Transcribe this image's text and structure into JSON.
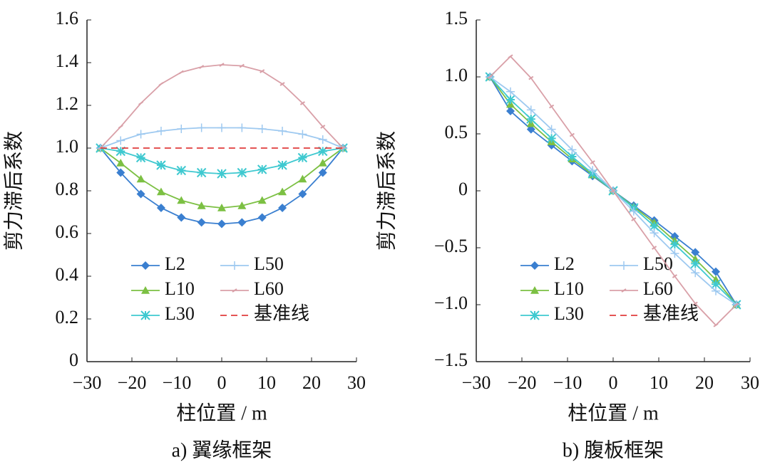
{
  "chart_data": [
    {
      "type": "line",
      "title": "a)  翼缘框架",
      "xlabel": "柱位置 / m",
      "ylabel": "剪力滞后系数",
      "x": [
        -27,
        -22.5,
        -18,
        -13.5,
        -9,
        -4.5,
        0,
        4.5,
        9,
        13.5,
        18,
        22.5,
        27
      ],
      "xlim": [
        -30,
        30
      ],
      "xticks": [
        {
          "value": -30,
          "label": "−30"
        },
        {
          "value": -20,
          "label": "−20"
        },
        {
          "value": -10,
          "label": "−10"
        },
        0,
        10,
        20,
        30
      ],
      "ylim": [
        0,
        1.6
      ],
      "yticks": [
        0,
        0.2,
        0.4,
        0.6,
        0.8,
        {
          "value": 1.0,
          "label": "1.0"
        },
        1.2,
        1.4,
        1.6
      ],
      "legend": "lower left",
      "series": [
        {
          "name": "L2",
          "color": "#3a7fd0",
          "marker": "diamond",
          "values": [
            1.0,
            0.885,
            0.785,
            0.72,
            0.675,
            0.652,
            0.645,
            0.652,
            0.675,
            0.72,
            0.785,
            0.885,
            1.0
          ]
        },
        {
          "name": "L10",
          "color": "#7cc043",
          "marker": "triangle",
          "values": [
            1.0,
            0.93,
            0.855,
            0.795,
            0.755,
            0.73,
            0.72,
            0.73,
            0.755,
            0.795,
            0.855,
            0.93,
            1.0
          ]
        },
        {
          "name": "L30",
          "color": "#3fc9d0",
          "marker": "star",
          "values": [
            1.0,
            0.985,
            0.955,
            0.92,
            0.895,
            0.885,
            0.88,
            0.885,
            0.9,
            0.92,
            0.955,
            0.985,
            1.0
          ]
        },
        {
          "name": "L50",
          "color": "#9ec9f0",
          "marker": "plus",
          "values": [
            1.0,
            1.035,
            1.065,
            1.08,
            1.09,
            1.095,
            1.095,
            1.095,
            1.09,
            1.08,
            1.065,
            1.04,
            1.0
          ]
        },
        {
          "name": "L60",
          "color": "#d9a0a8",
          "marker": "dash",
          "values": [
            1.0,
            1.1,
            1.21,
            1.3,
            1.355,
            1.38,
            1.39,
            1.385,
            1.36,
            1.3,
            1.21,
            1.1,
            1.0
          ]
        },
        {
          "name": "基准线",
          "color": "#e03c3c",
          "marker": "none",
          "dashed": true,
          "values": [
            1.0,
            1.0,
            1.0,
            1.0,
            1.0,
            1.0,
            1.0,
            1.0,
            1.0,
            1.0,
            1.0,
            1.0,
            1.0
          ]
        }
      ]
    },
    {
      "type": "line",
      "title": "b)  腹板框架",
      "xlabel": "柱位置 / m",
      "ylabel": "剪力滞后系数",
      "x": [
        -27,
        -22.5,
        -18,
        -13.5,
        -9,
        -4.5,
        0,
        4.5,
        9,
        13.5,
        18,
        22.5,
        27
      ],
      "xlim": [
        -30,
        30
      ],
      "xticks": [
        {
          "value": -30,
          "label": "−30"
        },
        {
          "value": -20,
          "label": "−20"
        },
        {
          "value": -10,
          "label": "−10"
        },
        0,
        10,
        20,
        30
      ],
      "ylim": [
        -1.5,
        1.5
      ],
      "yticks": [
        {
          "value": -1.5,
          "label": "−1.5"
        },
        {
          "value": -1.0,
          "label": "−1.0"
        },
        {
          "value": -0.5,
          "label": "−0.5"
        },
        0,
        0.5,
        {
          "value": 1.0,
          "label": "1.0"
        },
        1.5
      ],
      "legend": "lower left",
      "series": [
        {
          "name": "L2",
          "color": "#3a7fd0",
          "marker": "diamond",
          "values": [
            1.0,
            0.7,
            0.54,
            0.4,
            0.26,
            0.13,
            0,
            -0.13,
            -0.26,
            -0.4,
            -0.54,
            -0.71,
            -1.0
          ]
        },
        {
          "name": "L10",
          "color": "#7cc043",
          "marker": "triangle",
          "values": [
            1.0,
            0.76,
            0.59,
            0.43,
            0.28,
            0.14,
            0,
            -0.14,
            -0.28,
            -0.44,
            -0.6,
            -0.78,
            -1.0
          ]
        },
        {
          "name": "L30",
          "color": "#3fc9d0",
          "marker": "star",
          "values": [
            1.0,
            0.8,
            0.63,
            0.46,
            0.3,
            0.15,
            0,
            -0.15,
            -0.31,
            -0.47,
            -0.64,
            -0.82,
            -1.0
          ]
        },
        {
          "name": "L50",
          "color": "#9ec9f0",
          "marker": "plus",
          "values": [
            1.0,
            0.87,
            0.71,
            0.54,
            0.36,
            0.18,
            0,
            -0.18,
            -0.37,
            -0.55,
            -0.72,
            -0.88,
            -1.0
          ]
        },
        {
          "name": "L60",
          "color": "#d9a0a8",
          "marker": "dash",
          "values": [
            1.0,
            1.18,
            0.99,
            0.74,
            0.49,
            0.25,
            0,
            -0.25,
            -0.5,
            -0.75,
            -0.99,
            -1.18,
            -1.0
          ]
        },
        {
          "name": "基准线",
          "color": "#e03c3c",
          "marker": "none",
          "dashed": true,
          "values": [
            null,
            null,
            null,
            null,
            null,
            null,
            null,
            null,
            null,
            null,
            null,
            null,
            null
          ]
        }
      ]
    }
  ]
}
